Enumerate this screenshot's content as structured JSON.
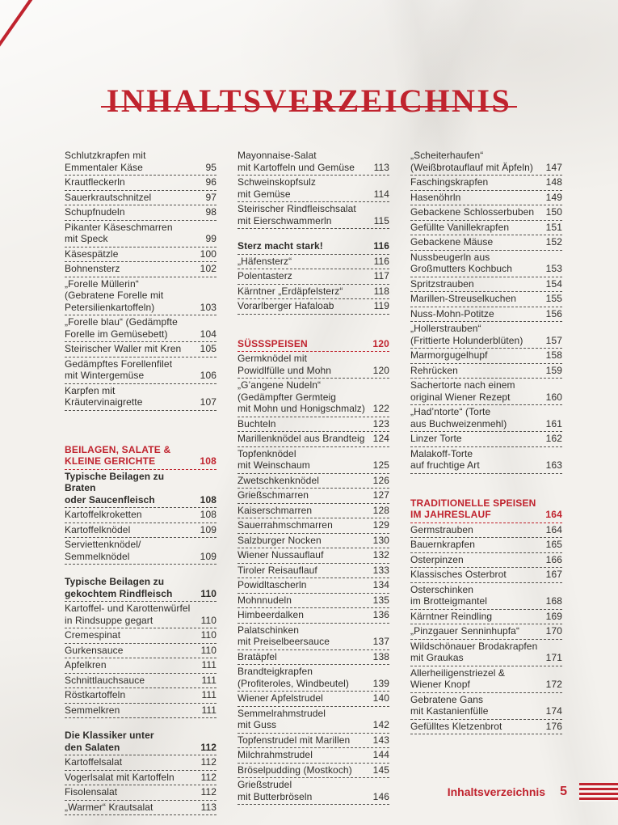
{
  "colors": {
    "accent_red": "#c0232e",
    "text": "#2e2c29",
    "paper": "#f3f1ed"
  },
  "header": {
    "title": "INHALTSVERZEICHNIS"
  },
  "footer": {
    "label": "Inhaltsverzeichnis",
    "page_number": "5",
    "flag_icon": "austrian-flag-stripes"
  },
  "columns": [
    {
      "entries": [
        {
          "text": "Schlutzkrapfen mit\nEmmentaler Käse",
          "page": "95",
          "style": "normal"
        },
        {
          "text": "Krautfleckerln",
          "page": "96",
          "style": "normal"
        },
        {
          "text": "Sauerkrautschnitzel",
          "page": "97",
          "style": "normal"
        },
        {
          "text": "Schupfnudeln",
          "page": "98",
          "style": "normal"
        },
        {
          "text": "Pikanter Käseschmarren\nmit Speck",
          "page": "99",
          "style": "normal"
        },
        {
          "text": "Käsespätzle",
          "page": "100",
          "style": "normal"
        },
        {
          "text": "Bohnensterz",
          "page": "102",
          "style": "normal"
        },
        {
          "text": "„Forelle Müllerin“\n(Gebratene Forelle mit\nPetersilienkartoffeln)",
          "page": "103",
          "style": "normal"
        },
        {
          "text": "„Forelle blau“ (Gedämpfte\nForelle im Gemüsebett)",
          "page": "104",
          "style": "normal"
        },
        {
          "text": "Steirischer Waller mit Kren",
          "page": "105",
          "style": "normal"
        },
        {
          "text": "Gedämpftes Forellenfilet\nmit Wintergemüse",
          "page": "106",
          "style": "normal"
        },
        {
          "text": "Karpfen mit\nKräutervinaigrette",
          "page": "107",
          "style": "normal"
        },
        {
          "style": "spacer",
          "h": 40
        },
        {
          "text": "BEILAGEN, SALATE &\nKLEINE GERICHTE",
          "page": "108",
          "style": "heading"
        },
        {
          "text": "Typische Beilagen zu Braten\noder Saucenfleisch",
          "page": "108",
          "style": "bold"
        },
        {
          "text": "Kartoffelkroketten",
          "page": "108",
          "style": "normal"
        },
        {
          "text": "Kartoffelknödel",
          "page": "109",
          "style": "normal"
        },
        {
          "text": "Serviettenknödel/\nSemmelknödel",
          "page": "109",
          "style": "normal"
        },
        {
          "style": "spacer",
          "h": 13
        },
        {
          "text": "Typische Beilagen zu\ngekochtem Rindfleisch",
          "page": "110",
          "style": "bold"
        },
        {
          "text": "Kartoffel- und Karottenwürfel\nin Rindsuppe gegart",
          "page": "110",
          "style": "normal"
        },
        {
          "text": "Cremespinat",
          "page": "110",
          "style": "normal"
        },
        {
          "text": "Gurkensauce",
          "page": "110",
          "style": "normal"
        },
        {
          "text": "Apfelkren",
          "page": "111",
          "style": "normal"
        },
        {
          "text": "Schnittlauchsauce",
          "page": "111",
          "style": "normal"
        },
        {
          "text": "Röstkartoffeln",
          "page": "111",
          "style": "normal"
        },
        {
          "text": "Semmelkren",
          "page": "111",
          "style": "normal"
        },
        {
          "style": "spacer",
          "h": 13
        },
        {
          "text": "Die Klassiker unter\nden Salaten",
          "page": "112",
          "style": "bold"
        },
        {
          "text": "Kartoffelsalat",
          "page": "112",
          "style": "normal"
        },
        {
          "text": "Vogerlsalat mit Kartoffeln",
          "page": "112",
          "style": "normal"
        },
        {
          "text": "Fisolensalat",
          "page": "112",
          "style": "normal"
        },
        {
          "text": "„Warmer“ Krautsalat",
          "page": "113",
          "style": "normal"
        }
      ]
    },
    {
      "entries": [
        {
          "text": "Mayonnaise-Salat\nmit Kartoffeln und Gemüse",
          "page": "113",
          "style": "normal"
        },
        {
          "text": "Schweinskopfsulz\nmit Gemüse",
          "page": "114",
          "style": "normal"
        },
        {
          "text": "Steirischer Rindfleischsalat\nmit Eierschwammerln",
          "page": "115",
          "style": "normal"
        },
        {
          "style": "spacer",
          "h": 13
        },
        {
          "text": "Sterz macht stark!",
          "page": "116",
          "style": "bold"
        },
        {
          "text": "„Häfensterz“",
          "page": "116",
          "style": "normal"
        },
        {
          "text": "Polentasterz",
          "page": "117",
          "style": "normal"
        },
        {
          "text": "Kärntner „Erdäpfelsterz“",
          "page": "118",
          "style": "normal"
        },
        {
          "text": "Vorarlberger Hafaloab",
          "page": "119",
          "style": "normal"
        },
        {
          "style": "spacer",
          "h": 28
        },
        {
          "text": "SÜSSSPEISEN",
          "page": "120",
          "style": "heading"
        },
        {
          "text": "Germknödel mit\nPowidlfülle und Mohn",
          "page": "120",
          "style": "normal"
        },
        {
          "text": "„G’angene Nudeln“\n(Gedämpfter Germteig\nmit Mohn und Honigschmalz)",
          "page": "122",
          "style": "normal"
        },
        {
          "text": "Buchteln",
          "page": "123",
          "style": "normal"
        },
        {
          "text": "Marillenknödel aus Brandteig",
          "page": "124",
          "style": "normal"
        },
        {
          "text": "Topfenknödel\nmit Weinschaum",
          "page": "125",
          "style": "normal"
        },
        {
          "text": "Zwetschkenknödel",
          "page": "126",
          "style": "normal"
        },
        {
          "text": "Grießschmarren",
          "page": "127",
          "style": "normal"
        },
        {
          "text": "Kaiserschmarren",
          "page": "128",
          "style": "normal"
        },
        {
          "text": "Sauerrahmschmarren",
          "page": "129",
          "style": "normal"
        },
        {
          "text": "Salzburger Nocken",
          "page": "130",
          "style": "normal"
        },
        {
          "text": "Wiener Nussauflauf",
          "page": "132",
          "style": "normal"
        },
        {
          "text": "Tiroler Reisauflauf",
          "page": "133",
          "style": "normal"
        },
        {
          "text": "Powidltascherln",
          "page": "134",
          "style": "normal"
        },
        {
          "text": "Mohnnudeln",
          "page": "135",
          "style": "normal"
        },
        {
          "text": "Himbeerdalken",
          "page": "136",
          "style": "normal"
        },
        {
          "text": "Palatschinken\nmit Preiselbeersauce",
          "page": "137",
          "style": "normal"
        },
        {
          "text": "Bratäpfel",
          "page": "138",
          "style": "normal"
        },
        {
          "text": "Brandteigkrapfen\n(Profiteroles, Windbeutel)",
          "page": "139",
          "style": "normal"
        },
        {
          "text": "Wiener Apfelstrudel",
          "page": "140",
          "style": "normal"
        },
        {
          "text": "Semmelrahmstrudel\nmit Guss",
          "page": "142",
          "style": "normal"
        },
        {
          "text": "Topfenstrudel mit Marillen",
          "page": "143",
          "style": "normal"
        },
        {
          "text": "Milchrahmstrudel",
          "page": "144",
          "style": "normal"
        },
        {
          "text": "Bröselpudding (Mostkoch)",
          "page": "145",
          "style": "normal"
        },
        {
          "text": "Grießstrudel\nmit Butterbröseln",
          "page": "146",
          "style": "normal"
        }
      ]
    },
    {
      "entries": [
        {
          "text": "„Scheiterhaufen“\n(Weißbrotauflauf mit Äpfeln)",
          "page": "147",
          "style": "normal"
        },
        {
          "text": "Faschingskrapfen",
          "page": "148",
          "style": "normal"
        },
        {
          "text": "Hasenöhrln",
          "page": "149",
          "style": "normal"
        },
        {
          "text": "Gebackene Schlosserbuben",
          "page": "150",
          "style": "normal"
        },
        {
          "text": "Gefüllte Vanillekrapfen",
          "page": "151",
          "style": "normal"
        },
        {
          "text": "Gebackene Mäuse",
          "page": "152",
          "style": "normal"
        },
        {
          "text": "Nussbeugerln aus\nGroßmutters Kochbuch",
          "page": "153",
          "style": "normal"
        },
        {
          "text": "Spritzstrauben",
          "page": "154",
          "style": "normal"
        },
        {
          "text": "Marillen-Streuselkuchen",
          "page": "155",
          "style": "normal"
        },
        {
          "text": "Nuss-Mohn-Potitze",
          "page": "156",
          "style": "normal"
        },
        {
          "text": "„Hollerstrauben“\n(Frittierte Holunderblüten)",
          "page": "157",
          "style": "normal"
        },
        {
          "text": "Marmorgugelhupf",
          "page": "158",
          "style": "normal"
        },
        {
          "text": "Rehrücken",
          "page": "159",
          "style": "normal"
        },
        {
          "text": "Sachertorte nach einem\noriginal Wiener Rezept",
          "page": "160",
          "style": "normal"
        },
        {
          "text": "„Had’ntorte“ (Torte\naus Buchweizenmehl)",
          "page": "161",
          "style": "normal"
        },
        {
          "text": "Linzer Torte",
          "page": "162",
          "style": "normal"
        },
        {
          "text": "Malakoff-Torte\nauf fruchtige Art",
          "page": "163",
          "style": "normal"
        },
        {
          "style": "spacer",
          "h": 28
        },
        {
          "text": "TRADITIONELLE SPEISEN\nIM JAHRESLAUF",
          "page": "164",
          "style": "heading"
        },
        {
          "text": "Germstrauben",
          "page": "164",
          "style": "normal"
        },
        {
          "text": "Bauernkrapfen",
          "page": "165",
          "style": "normal"
        },
        {
          "text": "Osterpinzen",
          "page": "166",
          "style": "normal"
        },
        {
          "text": "Klassisches Osterbrot",
          "page": "167",
          "style": "normal"
        },
        {
          "text": "Osterschinken\nim Brotteigmantel",
          "page": "168",
          "style": "normal"
        },
        {
          "text": "Kärntner Reindling",
          "page": "169",
          "style": "normal"
        },
        {
          "text": "„Pinzgauer Senninhupfa“",
          "page": "170",
          "style": "normal"
        },
        {
          "text": "Wildschönauer Brodakrapfen\nmit Graukas",
          "page": "171",
          "style": "normal"
        },
        {
          "text": "Allerheiligenstriezel &\nWiener Knopf",
          "page": "172",
          "style": "normal"
        },
        {
          "text": "Gebratene Gans\nmit Kastanienfülle",
          "page": "174",
          "style": "normal"
        },
        {
          "text": "Gefülltes Kletzenbrot",
          "page": "176",
          "style": "normal"
        }
      ]
    }
  ]
}
